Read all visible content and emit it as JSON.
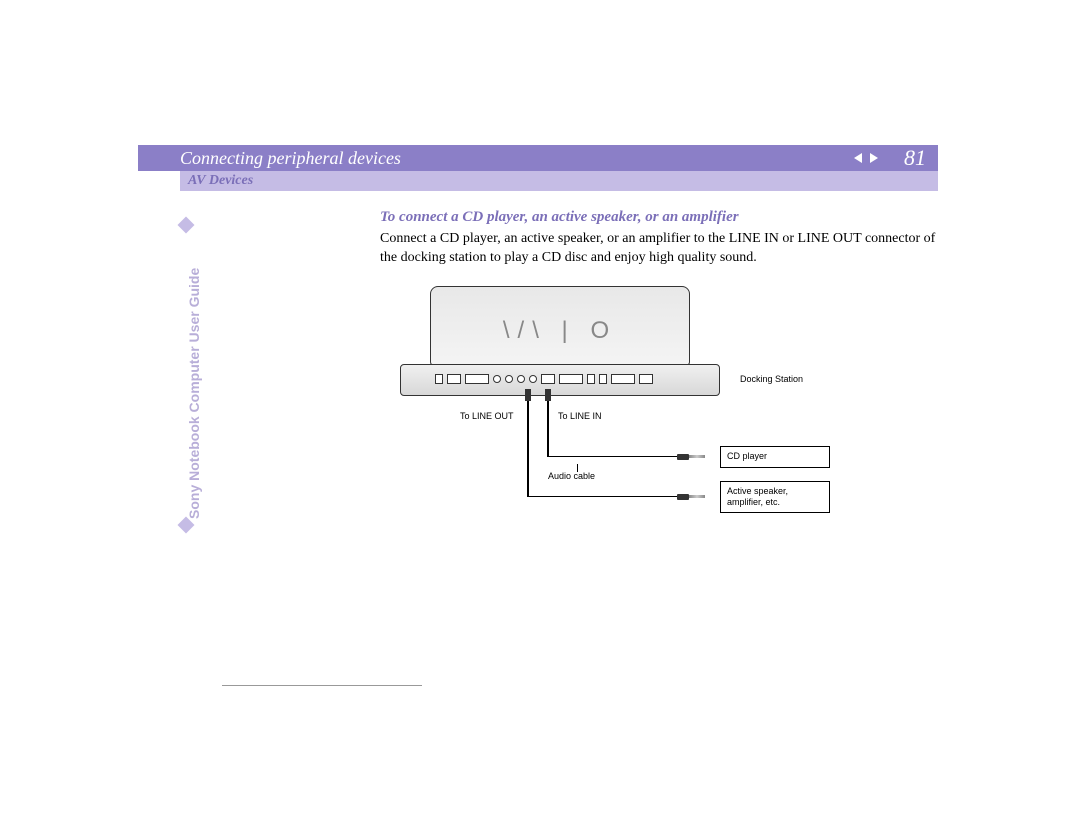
{
  "header": {
    "title": "Connecting peripheral devices",
    "page_number": "81"
  },
  "subheader": {
    "title": "AV Devices"
  },
  "sidebar": {
    "text": "Sony Notebook Computer User Guide"
  },
  "content": {
    "section_heading": "To connect a CD player, an active speaker, or an amplifier",
    "body_text": "Connect a CD player, an active speaker, or an amplifier to the LINE IN or LINE OUT connector of the docking station to play a CD disc and enjoy high quality sound."
  },
  "diagram": {
    "logo": "\\/\\ | O",
    "docking_station_label": "Docking Station",
    "line_out_label": "To LINE OUT",
    "line_in_label": "To LINE IN",
    "audio_cable_label": "Audio cable",
    "cd_player_label": "CD player",
    "speaker_label": "Active speaker, amplifier, etc."
  },
  "colors": {
    "header_bg": "#8b7fc7",
    "sub_bg": "#c5bce5",
    "accent_text": "#7b6fb8",
    "sidebar_text": "#b8aed8"
  }
}
